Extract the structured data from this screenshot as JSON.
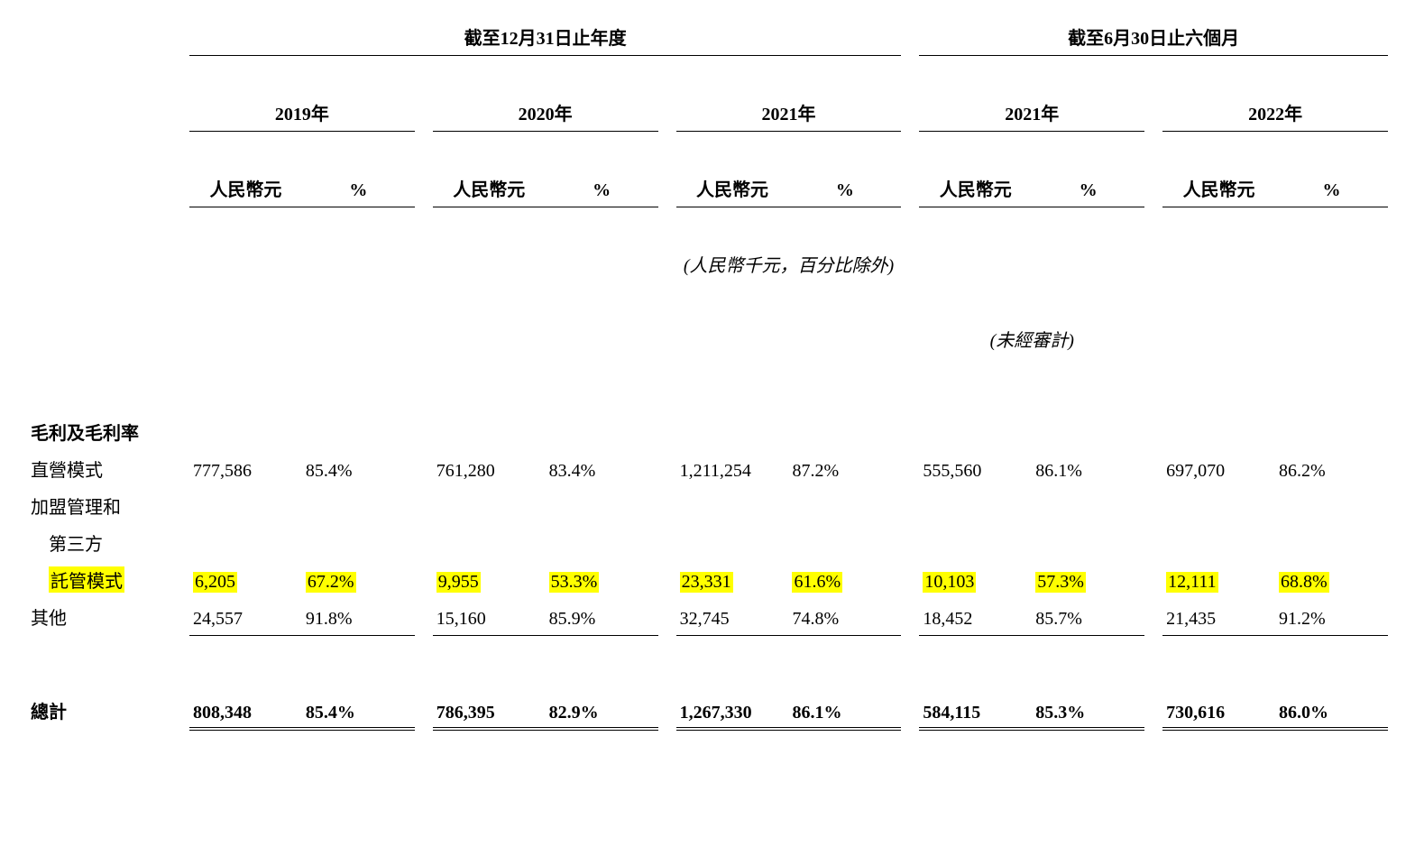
{
  "headers": {
    "period_year": "截至12月31日止年度",
    "period_half": "截至6月30日止六個月",
    "y2019": "2019年",
    "y2020": "2020年",
    "y2021": "2021年",
    "h2021": "2021年",
    "h2022": "2022年",
    "unit_rmb": "人民幣元",
    "unit_pct": "%",
    "note_units": "(人民幣千元，百分比除外)",
    "note_unaudited": "(未經審計)"
  },
  "section_title": "毛利及毛利率",
  "rows": {
    "direct": {
      "label": "直營模式",
      "v2019": "777,586",
      "p2019": "85.4%",
      "v2020": "761,280",
      "p2020": "83.4%",
      "v2021": "1,211,254",
      "p2021": "87.2%",
      "vh2021": "555,560",
      "ph2021": "86.1%",
      "vh2022": "697,070",
      "ph2022": "86.2%"
    },
    "franchise_l1": "加盟管理和",
    "franchise_l2": "第三方",
    "trust": {
      "label": "託管模式",
      "v2019": "6,205",
      "p2019": "67.2%",
      "v2020": "9,955",
      "p2020": "53.3%",
      "v2021": "23,331",
      "p2021": "61.6%",
      "vh2021": "10,103",
      "ph2021": "57.3%",
      "vh2022": "12,111",
      "ph2022": "68.8%"
    },
    "other": {
      "label": "其他",
      "v2019": "24,557",
      "p2019": "91.8%",
      "v2020": "15,160",
      "p2020": "85.9%",
      "v2021": "32,745",
      "p2021": "74.8%",
      "vh2021": "18,452",
      "ph2021": "85.7%",
      "vh2022": "21,435",
      "ph2022": "91.2%"
    },
    "total": {
      "label": "總計",
      "v2019": "808,348",
      "p2019": "85.4%",
      "v2020": "786,395",
      "p2020": "82.9%",
      "v2021": "1,267,330",
      "p2021": "86.1%",
      "vh2021": "584,115",
      "ph2021": "85.3%",
      "vh2022": "730,616",
      "ph2022": "86.0%"
    }
  },
  "style": {
    "highlight_color": "#ffff00",
    "text_color": "#000000",
    "background_color": "#ffffff",
    "font_family": "Times New Roman / SimSun",
    "font_size_pt": 15
  }
}
